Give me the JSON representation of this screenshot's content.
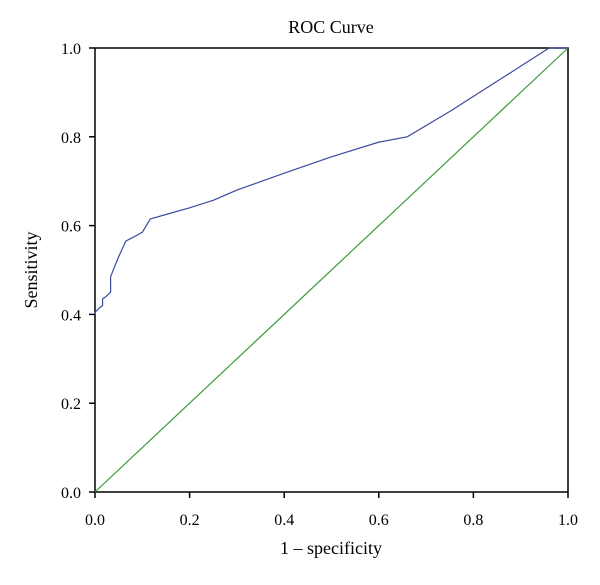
{
  "chart_data": {
    "type": "line",
    "title": "ROC Curve",
    "xlabel": "1 – specificity",
    "ylabel": "Sensitivity",
    "xlim": [
      0.0,
      1.0
    ],
    "ylim": [
      0.0,
      1.0
    ],
    "x_ticks": [
      "0.0",
      "0.2",
      "0.4",
      "0.6",
      "0.8",
      "1.0"
    ],
    "y_ticks": [
      "0.0",
      "0.2",
      "0.4",
      "0.6",
      "0.8",
      "1.0"
    ],
    "x_tick_values": [
      0.0,
      0.2,
      0.4,
      0.6,
      0.8,
      1.0
    ],
    "y_tick_values": [
      0.0,
      0.2,
      0.4,
      0.6,
      0.8,
      1.0
    ],
    "grid": false,
    "series": [
      {
        "color": "#3b4aa0",
        "x": [
          0.0,
          0.0,
          0.01,
          0.016,
          0.016,
          0.023,
          0.033,
          0.033,
          0.048,
          0.065,
          0.083,
          0.1,
          0.117,
          0.15,
          0.2,
          0.25,
          0.3,
          0.4,
          0.5,
          0.6,
          0.66,
          0.75,
          0.85,
          0.96,
          1.0
        ],
        "y": [
          0.4,
          0.405,
          0.415,
          0.42,
          0.435,
          0.44,
          0.45,
          0.485,
          0.525,
          0.565,
          0.575,
          0.585,
          0.615,
          0.625,
          0.64,
          0.657,
          0.68,
          0.718,
          0.755,
          0.788,
          0.8,
          0.857,
          0.925,
          1.0,
          1.0
        ]
      },
      {
        "color": "#3a9a3a",
        "x": [
          0.0,
          1.0
        ],
        "y": [
          0.0,
          1.0
        ]
      }
    ]
  }
}
